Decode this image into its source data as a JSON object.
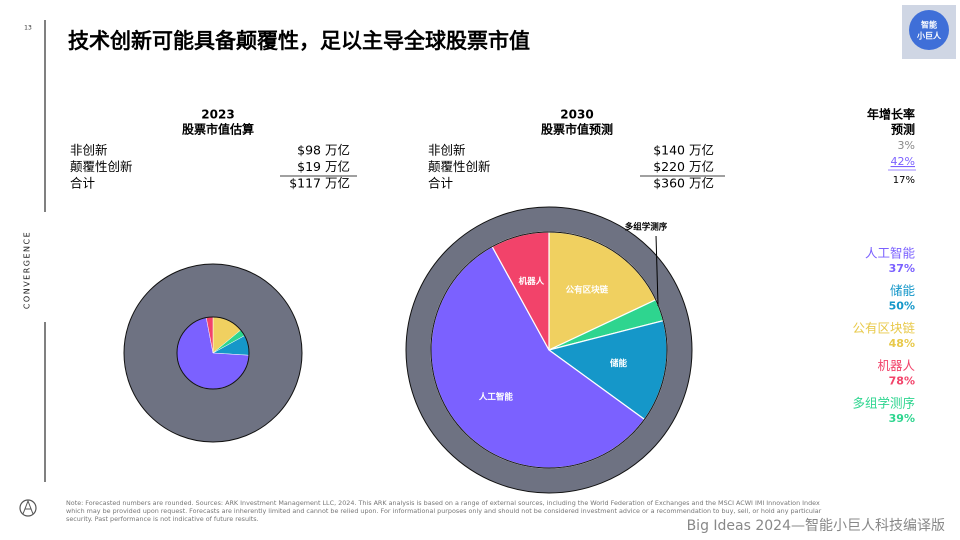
{
  "page_number": "13",
  "title": "技术创新可能具备颠覆性，足以主导全球股票市值",
  "side_label": "CONVERGENCE",
  "logo_text": [
    "智能",
    "小巨人"
  ],
  "tables": [
    {
      "rows": [
        [
          "非创新",
          "$98 万亿"
        ],
        [
          "颠覆性创新",
          "$19 万亿"
        ],
        [
          "合计",
          "$117 万亿"
        ]
      ]
    },
    {
      "rows": [
        [
          "非创新",
          "$140 万亿"
        ],
        [
          "颠覆性创新",
          "$220 万亿"
        ],
        [
          "合计",
          "$360 万亿"
        ]
      ]
    }
  ],
  "growth": {
    "title": [
      "年增长率",
      "预测"
    ],
    "values": [
      "3%",
      "42%",
      "17%"
    ]
  },
  "legend": [
    {
      "name": "人工智能",
      "growth": "37%",
      "color": "#7b61ff"
    },
    {
      "name": "储能",
      "growth": "50%",
      "color": "#1597c9"
    },
    {
      "name": "公有区块链",
      "growth": "48%",
      "color": "#e8c94a"
    },
    {
      "name": "机器人",
      "growth": "78%",
      "color": "#f2436a"
    },
    {
      "name": "多组学测序",
      "growth": "39%",
      "color": "#2ed58f"
    }
  ],
  "chart_data": [
    {
      "type": "pie",
      "title": "2023",
      "subtitle": "股票市值估算",
      "show_labels": false,
      "categories": [
        "公有区块链",
        "多组学测序",
        "储能",
        "人工智能",
        "机器人"
      ],
      "values": [
        14,
        3,
        9,
        71,
        3
      ],
      "colors": [
        "#f0d060",
        "#2ed58f",
        "#1597c9",
        "#7b61ff",
        "#f2436a"
      ]
    },
    {
      "type": "pie",
      "title": "2030",
      "subtitle": "股票市值预测",
      "show_labels": true,
      "categories": [
        "公有区块链",
        "多组学测序",
        "储能",
        "人工智能",
        "机器人"
      ],
      "values": [
        18,
        3,
        14,
        57,
        8
      ],
      "colors": [
        "#f0d060",
        "#2ed58f",
        "#1597c9",
        "#7b61ff",
        "#f2436a"
      ]
    }
  ],
  "footnote": [
    "Note: Forecasted numbers are rounded. Sources: ARK Investment Management LLC, 2024. This ARK analysis is based on a range of external sources, including the World Federation of Exchanges and the MSCI ACWI IMI Innovation Index",
    "which may be provided upon request. Forecasts are inherently limited and cannot be relied upon. For informational purposes only and should not be considered investment advice or a recommendation to buy, sell, or hold any particular",
    "security. Past performance is not indicative of future results."
  ],
  "brand": "Big Ideas 2024—智能小巨人科技编译版"
}
